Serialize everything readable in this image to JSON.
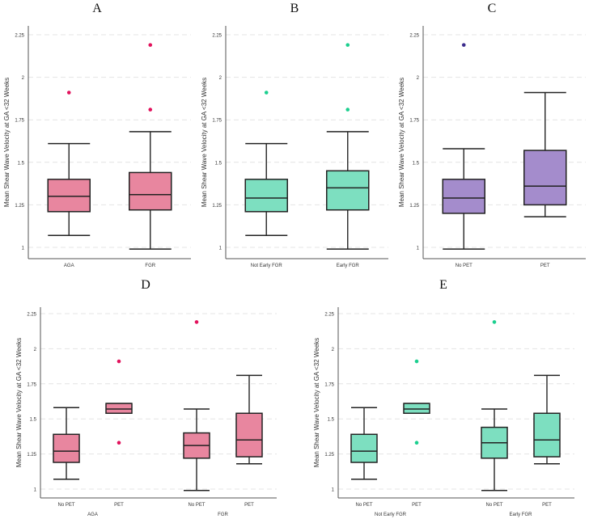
{
  "chart_data": [
    {
      "id": "A",
      "type": "box",
      "title": "A",
      "ylabel": "Mean Shear Wave Velocity at GA <32 Weeks",
      "ylim": [
        0.95,
        2.3
      ],
      "yticks": [
        "1",
        "1.25",
        "1.5",
        "1.75",
        "2",
        "2.25"
      ],
      "color": "#e8869f",
      "outlier_color": "#e2125c",
      "boxes": [
        {
          "label": "AGA",
          "min": 1.07,
          "q1": 1.21,
          "median": 1.3,
          "q3": 1.4,
          "max": 1.61,
          "outliers": [
            1.91
          ]
        },
        {
          "label": "FGR",
          "min": 0.99,
          "q1": 1.22,
          "median": 1.31,
          "q3": 1.44,
          "max": 1.68,
          "outliers": [
            1.81,
            2.19
          ]
        }
      ],
      "groups": []
    },
    {
      "id": "B",
      "type": "box",
      "title": "B",
      "ylabel": "Mean Shear Wave Velocity at GA <32 Weeks",
      "ylim": [
        0.95,
        2.3
      ],
      "yticks": [
        "1",
        "1.25",
        "1.5",
        "1.75",
        "2",
        "2.25"
      ],
      "color": "#7ddfc0",
      "outlier_color": "#1ccf8f",
      "boxes": [
        {
          "label": "Not Early FGR",
          "min": 1.07,
          "q1": 1.21,
          "median": 1.29,
          "q3": 1.4,
          "max": 1.61,
          "outliers": [
            1.91
          ]
        },
        {
          "label": "Early FGR",
          "min": 0.99,
          "q1": 1.22,
          "median": 1.35,
          "q3": 1.45,
          "max": 1.68,
          "outliers": [
            1.81,
            2.19
          ]
        }
      ],
      "groups": []
    },
    {
      "id": "C",
      "type": "box",
      "title": "C",
      "ylabel": "Mean Shear Wave Velocity at GA <32 Weeks",
      "ylim": [
        0.95,
        2.3
      ],
      "yticks": [
        "1",
        "1.25",
        "1.5",
        "1.75",
        "2",
        "2.25"
      ],
      "color": "#a48ccc",
      "outlier_color": "#3b2b8c",
      "boxes": [
        {
          "label": "No PET",
          "min": 0.99,
          "q1": 1.2,
          "median": 1.29,
          "q3": 1.4,
          "max": 1.58,
          "outliers": [
            2.19
          ]
        },
        {
          "label": "PET",
          "min": 1.18,
          "q1": 1.25,
          "median": 1.36,
          "q3": 1.57,
          "max": 1.91,
          "outliers": []
        }
      ],
      "groups": []
    },
    {
      "id": "D",
      "type": "box",
      "title": "D",
      "ylabel": "Mean Shear Wave Velocity at GA <32 Weeks",
      "ylim": [
        0.95,
        2.3
      ],
      "yticks": [
        "1",
        "1.25",
        "1.5",
        "1.75",
        "2",
        "2.25"
      ],
      "color": "#e8869f",
      "outlier_color": "#e2125c",
      "boxes": [
        {
          "label": "No PET",
          "min": 1.07,
          "q1": 1.19,
          "median": 1.27,
          "q3": 1.39,
          "max": 1.58,
          "outliers": []
        },
        {
          "label": "PET",
          "min": 1.54,
          "q1": 1.54,
          "median": 1.57,
          "q3": 1.61,
          "max": 1.61,
          "outliers": [
            1.91,
            1.33
          ]
        },
        {
          "label": "No PET",
          "min": 0.99,
          "q1": 1.22,
          "median": 1.31,
          "q3": 1.4,
          "max": 1.57,
          "outliers": [
            2.19
          ]
        },
        {
          "label": "PET",
          "min": 1.18,
          "q1": 1.23,
          "median": 1.35,
          "q3": 1.54,
          "max": 1.81,
          "outliers": []
        }
      ],
      "groups": [
        "AGA",
        "FGR"
      ]
    },
    {
      "id": "E",
      "type": "box",
      "title": "E",
      "ylabel": "Mean Shear Wave Velocity at GA <32 Weeks",
      "ylim": [
        0.95,
        2.3
      ],
      "yticks": [
        "1",
        "1.25",
        "1.5",
        "1.75",
        "2",
        "2.25"
      ],
      "color": "#7ddfc0",
      "outlier_color": "#1ccf8f",
      "boxes": [
        {
          "label": "No PET",
          "min": 1.07,
          "q1": 1.19,
          "median": 1.27,
          "q3": 1.39,
          "max": 1.58,
          "outliers": []
        },
        {
          "label": "PET",
          "min": 1.54,
          "q1": 1.54,
          "median": 1.57,
          "q3": 1.61,
          "max": 1.61,
          "outliers": [
            1.91,
            1.33
          ]
        },
        {
          "label": "No PET",
          "min": 0.99,
          "q1": 1.22,
          "median": 1.33,
          "q3": 1.44,
          "max": 1.57,
          "outliers": [
            2.19
          ]
        },
        {
          "label": "PET",
          "min": 1.18,
          "q1": 1.23,
          "median": 1.35,
          "q3": 1.54,
          "max": 1.81,
          "outliers": []
        }
      ],
      "groups": [
        "Not Early FGR",
        "Early FGR"
      ]
    }
  ]
}
